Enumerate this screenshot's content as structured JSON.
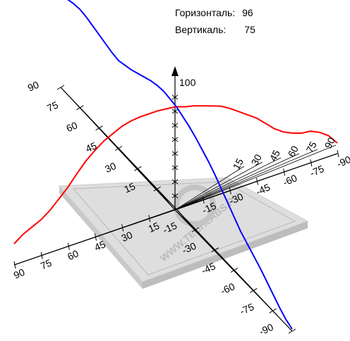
{
  "readout": {
    "horizontal_label": "Горизонталь:",
    "horizontal_value": "96",
    "vertical_label": "Вертикаль:",
    "vertical_value": "75"
  },
  "watermark": "WWW.TECHLABS.RU",
  "chart_data": {
    "type": "line",
    "title": "",
    "xlabel": "",
    "ylabel": "",
    "x_ticks": [
      90,
      75,
      60,
      45,
      30,
      15,
      -15,
      -30,
      -45,
      -60,
      -75,
      -90
    ],
    "vertical_ticks": [
      100
    ],
    "ylim": [
      0,
      100
    ],
    "series": [
      {
        "color": "#ff0000",
        "x": [
          -90,
          -85,
          -80,
          -75,
          -70,
          -65,
          -60,
          -55,
          -50,
          -45,
          -40,
          -35,
          -30,
          -25,
          -20,
          -15,
          -10,
          -5,
          0,
          5,
          10,
          15,
          20,
          25,
          30,
          35,
          40,
          45,
          50,
          55,
          60,
          65,
          70,
          75,
          80,
          85,
          90
        ],
        "values": [
          10,
          20,
          26,
          30,
          31,
          34,
          38,
          44,
          52,
          60,
          66,
          72,
          78,
          83,
          86,
          89,
          92,
          94,
          97,
          98,
          99,
          99,
          99,
          98,
          96,
          92,
          88,
          82,
          75,
          66,
          56,
          48,
          40,
          34,
          30,
          26,
          20
        ]
      },
      {
        "color": "#0000ff",
        "x": [
          -90,
          -85,
          -80,
          -75,
          -70,
          -65,
          -60,
          -55,
          -50,
          -45,
          -40,
          -35,
          -30,
          -25,
          -20,
          -15,
          -10,
          -5,
          0,
          5,
          10,
          15,
          20,
          25,
          30,
          35,
          40,
          45,
          50,
          55,
          60,
          65,
          70,
          75,
          80,
          85,
          90
        ],
        "values": [
          2,
          5,
          10,
          16,
          22,
          28,
          33,
          38,
          43,
          50,
          57,
          64,
          71,
          77,
          82,
          87,
          91,
          94,
          97,
          98,
          99,
          98,
          96,
          93,
          90,
          87,
          85,
          83,
          84,
          86,
          88,
          90,
          92,
          93,
          92,
          90,
          89
        ]
      }
    ],
    "grid": false,
    "legend": "none",
    "colors": {
      "axes": "#000000",
      "platform": "#d9d9d9",
      "platform_edge": "#bdbdbd"
    }
  }
}
